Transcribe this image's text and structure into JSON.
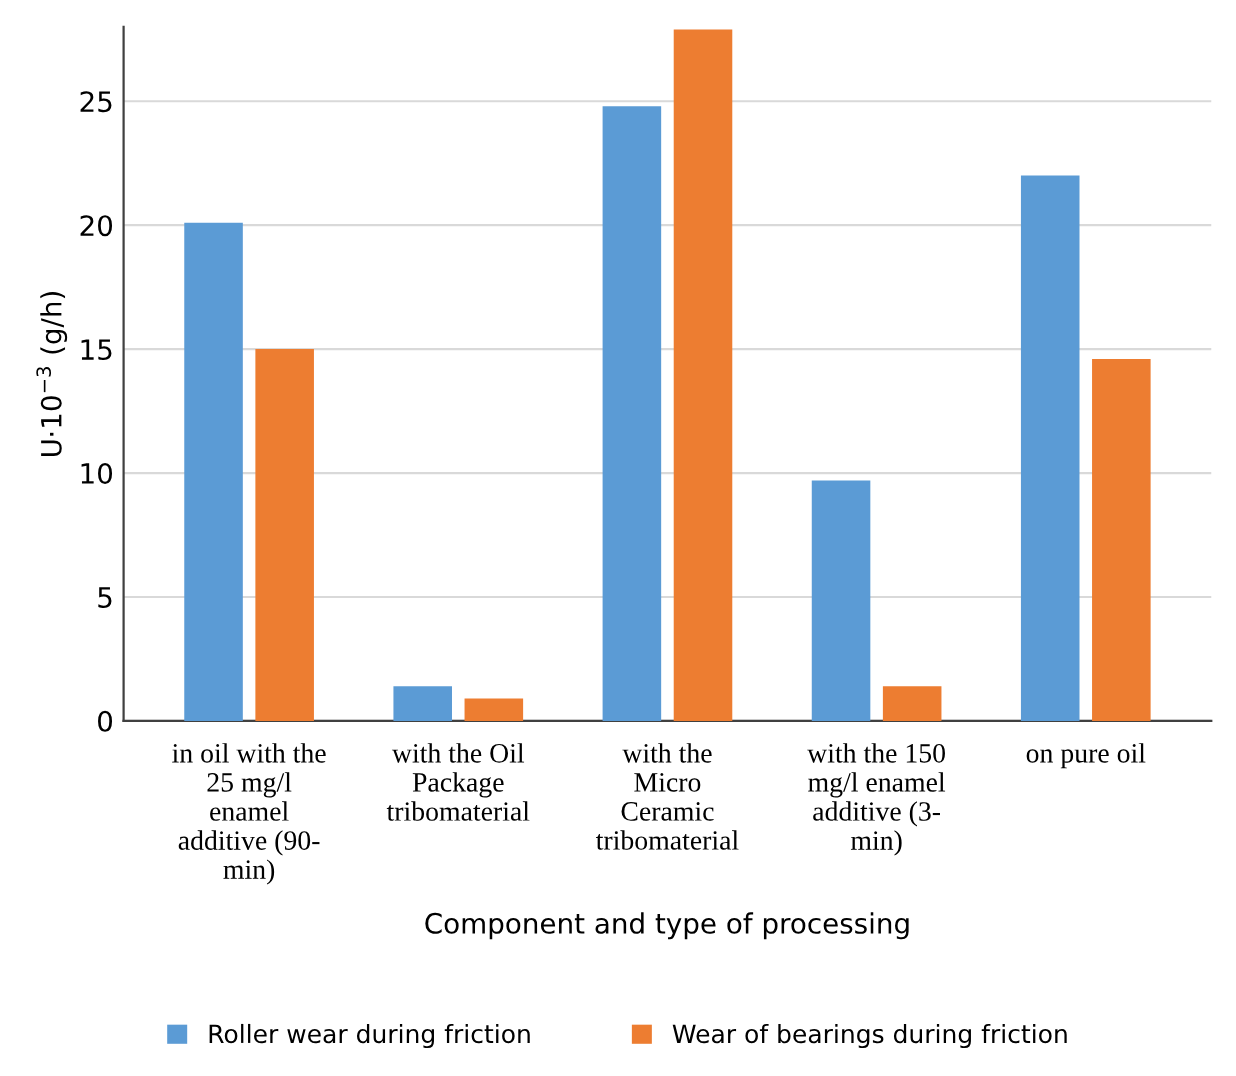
{
  "chart_data": {
    "type": "bar",
    "categories": [
      "in oil with the\n25 mg/l\nenamel\nadditive (90-\nmin)",
      "with the Oil\nPackage\ntribomaterial",
      "with the\nMicro\nCeramic\ntribomaterial",
      "with the 150\nmg/l enamel\nadditive (3-\nmin)",
      "on pure oil"
    ],
    "series": [
      {
        "name": "Roller wear during friction",
        "color": "#5b9bd5",
        "values": [
          20.1,
          1.4,
          24.8,
          9.7,
          22.0
        ]
      },
      {
        "name": "Wear of bearings during friction",
        "color": "#ed7d31",
        "values": [
          15.0,
          0.9,
          27.9,
          1.4,
          14.6
        ]
      }
    ],
    "xlabel": "Component and type of processing",
    "ylabel": "U·10$^{−3}$ (g/h)",
    "ylim": [
      0,
      28
    ],
    "yticks": [
      0,
      5,
      10,
      15,
      20,
      25
    ],
    "grid": "y",
    "legend": "bottom"
  }
}
